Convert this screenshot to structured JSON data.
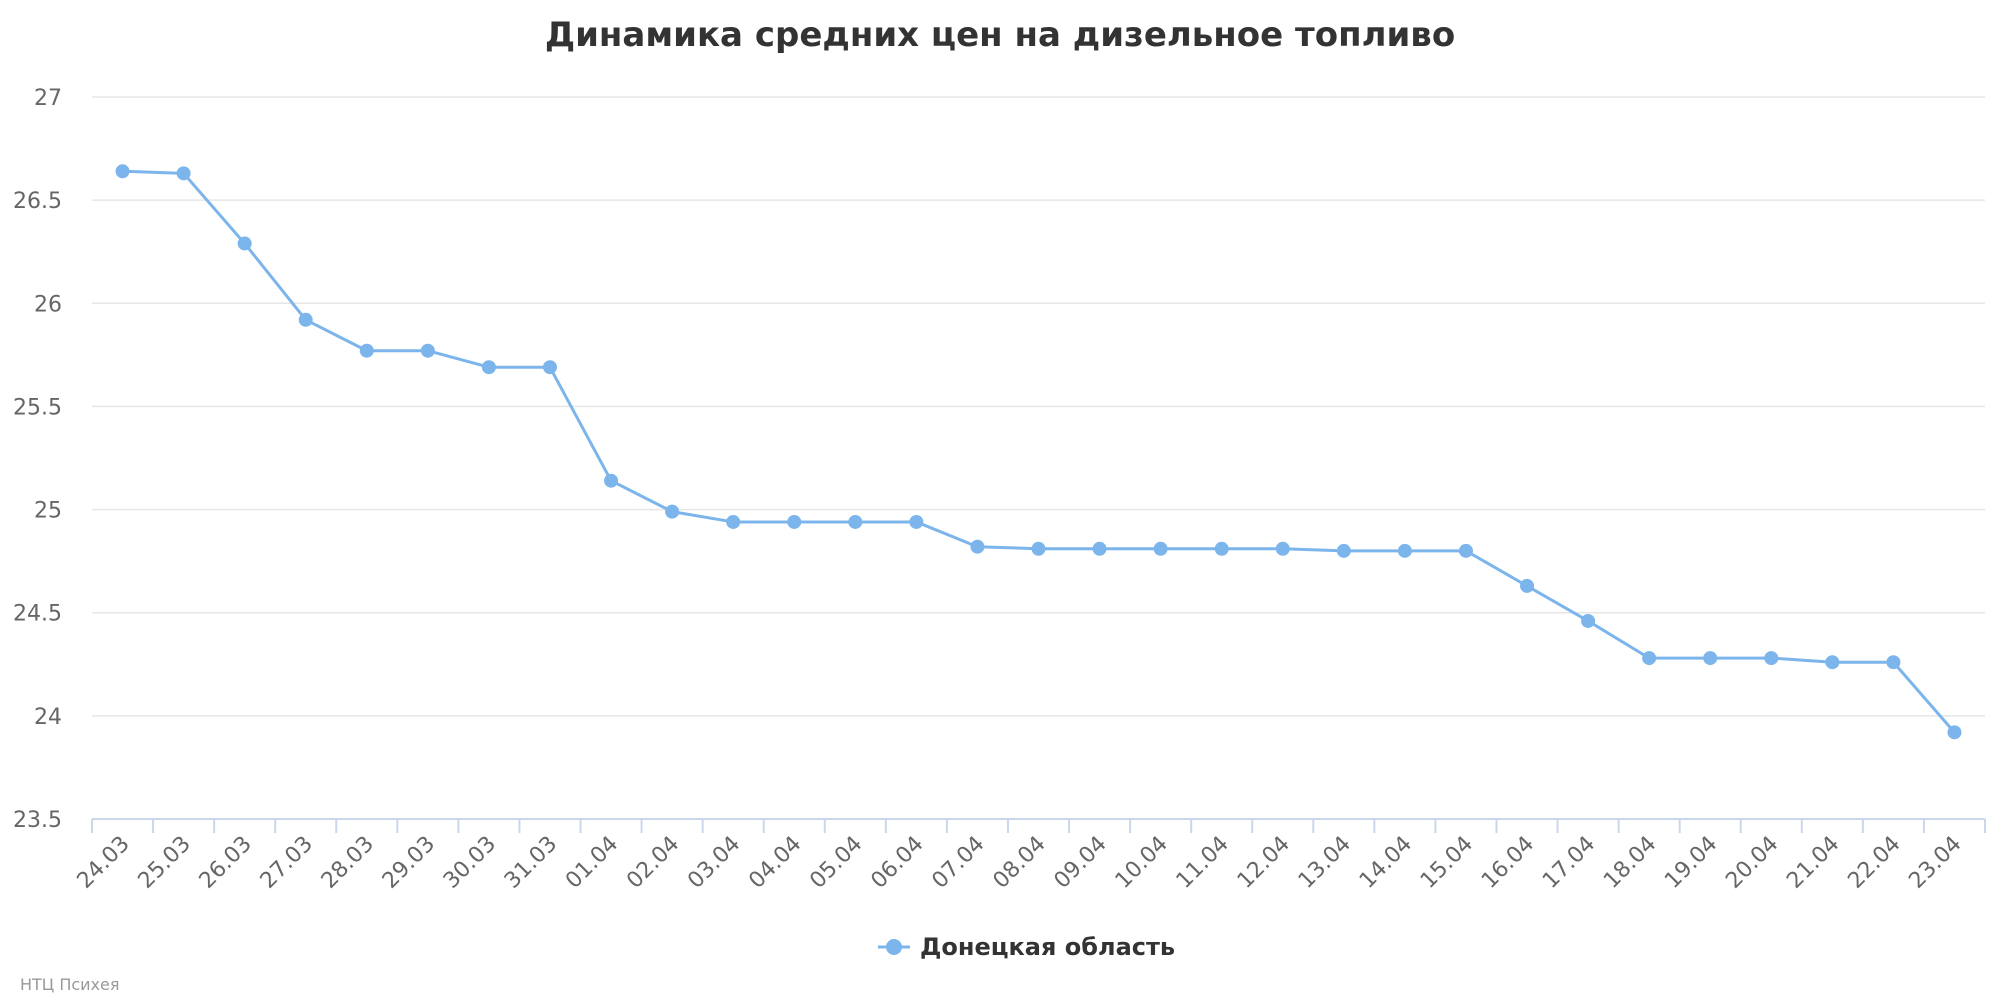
{
  "chart_data": {
    "type": "line",
    "title": "Динамика средних цен на дизельное топливо",
    "categories": [
      "24.03",
      "25.03",
      "26.03",
      "27.03",
      "28.03",
      "29.03",
      "30.03",
      "31.03",
      "01.04",
      "02.04",
      "03.04",
      "04.04",
      "05.04",
      "06.04",
      "07.04",
      "08.04",
      "09.04",
      "10.04",
      "11.04",
      "12.04",
      "13.04",
      "14.04",
      "15.04",
      "16.04",
      "17.04",
      "18.04",
      "19.04",
      "20.04",
      "21.04",
      "22.04",
      "23.04"
    ],
    "series": [
      {
        "name": "Донецкая область",
        "color": "#7cb5ec",
        "values": [
          26.64,
          26.63,
          26.29,
          25.92,
          25.77,
          25.77,
          25.69,
          25.69,
          25.14,
          24.99,
          24.94,
          24.94,
          24.94,
          24.94,
          24.82,
          24.81,
          24.81,
          24.81,
          24.81,
          24.81,
          24.8,
          24.8,
          24.8,
          24.63,
          24.46,
          24.28,
          24.28,
          24.28,
          24.26,
          24.26,
          23.92
        ]
      }
    ],
    "ylim": [
      23.5,
      27
    ],
    "yticks": [
      "23.5",
      "24",
      "24.5",
      "25",
      "25.5",
      "26",
      "26.5",
      "27"
    ],
    "grid": true,
    "legend": "bottom-center"
  },
  "credit": "НТЦ Психея"
}
